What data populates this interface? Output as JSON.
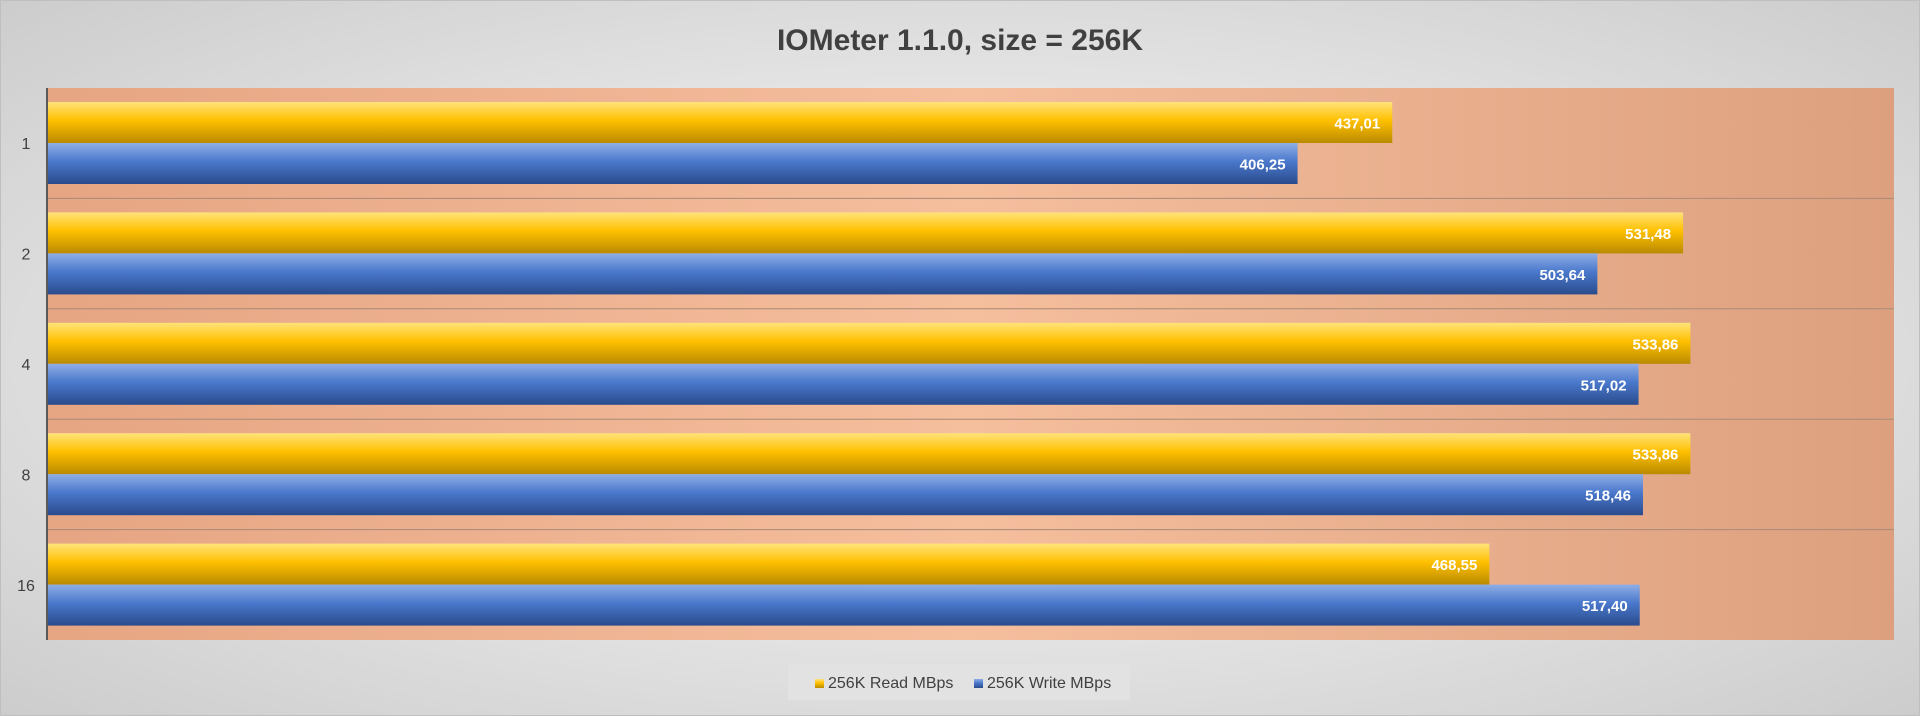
{
  "chart_data": {
    "type": "bar",
    "orientation": "horizontal",
    "title": "IOMeter 1.1.0, size = 256K",
    "categories": [
      "1",
      "2",
      "4",
      "8",
      "16"
    ],
    "series": [
      {
        "name": "256K Read MBps",
        "values": [
          437.01,
          531.48,
          533.86,
          533.86,
          468.55
        ],
        "labels": [
          "437,01",
          "531,48",
          "533,86",
          "533,86",
          "468,55"
        ],
        "color": "#FFC000"
      },
      {
        "name": "256K Write MBps",
        "values": [
          406.25,
          503.64,
          517.02,
          518.46,
          517.4
        ],
        "labels": [
          "406,25",
          "503,64",
          "517,02",
          "518,46",
          "517,40"
        ],
        "color": "#4472C4"
      }
    ],
    "xlim": [
      0,
      600
    ],
    "x_axis_labels_visible": false,
    "grid": true,
    "legend_position": "bottom",
    "colors": {
      "background": "#d9d9d9",
      "plot_area": "#F0B48F",
      "title_text": "#404040",
      "data_label_text": "#ffffff"
    }
  }
}
